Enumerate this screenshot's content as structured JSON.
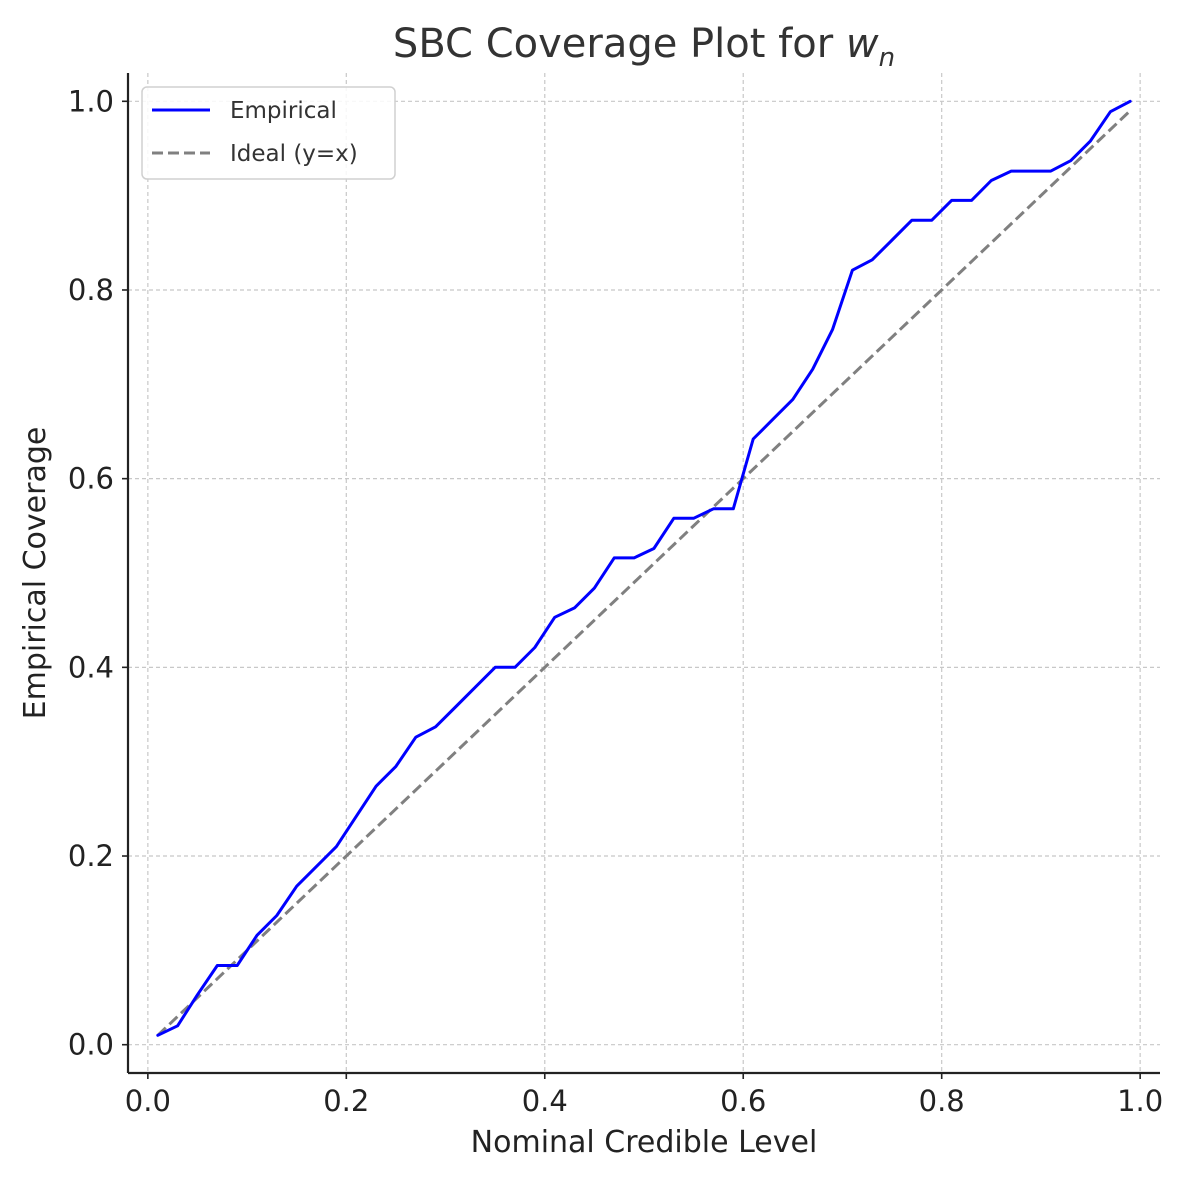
{
  "chart_data": {
    "type": "line",
    "title": {
      "text": "SBC Coverage Plot for ",
      "math_main": "w",
      "math_sub": "n"
    },
    "xlabel": "Nominal Credible Level",
    "ylabel": "Empirical Coverage",
    "xlim": [
      -0.02,
      1.02
    ],
    "ylim": [
      -0.03,
      1.03
    ],
    "xticks": [
      0.0,
      0.2,
      0.4,
      0.6,
      0.8,
      1.0
    ],
    "xtick_labels": [
      "0.0",
      "0.2",
      "0.4",
      "0.6",
      "0.8",
      "1.0"
    ],
    "yticks": [
      0.0,
      0.2,
      0.4,
      0.6,
      0.8,
      1.0
    ],
    "ytick_labels": [
      "0.0",
      "0.2",
      "0.4",
      "0.6",
      "0.8",
      "1.0"
    ],
    "grid": true,
    "legend_position": "upper-left",
    "series": [
      {
        "name": "Empirical",
        "color": "#0000ff",
        "style": "solid",
        "x": [
          0.01,
          0.03,
          0.05,
          0.07,
          0.09,
          0.11,
          0.13,
          0.15,
          0.17,
          0.19,
          0.21,
          0.23,
          0.25,
          0.27,
          0.29,
          0.31,
          0.33,
          0.35,
          0.37,
          0.39,
          0.41,
          0.43,
          0.45,
          0.47,
          0.49,
          0.51,
          0.53,
          0.55,
          0.57,
          0.59,
          0.61,
          0.63,
          0.65,
          0.67,
          0.69,
          0.71,
          0.73,
          0.75,
          0.77,
          0.79,
          0.81,
          0.83,
          0.85,
          0.87,
          0.89,
          0.91,
          0.93,
          0.95,
          0.97,
          0.99
        ],
        "y": [
          0.01,
          0.02,
          0.053,
          0.084,
          0.084,
          0.116,
          0.137,
          0.168,
          0.189,
          0.21,
          0.242,
          0.274,
          0.295,
          0.326,
          0.337,
          0.358,
          0.379,
          0.4,
          0.4,
          0.421,
          0.453,
          0.463,
          0.484,
          0.516,
          0.516,
          0.526,
          0.558,
          0.558,
          0.568,
          0.568,
          0.642,
          0.663,
          0.684,
          0.716,
          0.758,
          0.821,
          0.832,
          0.853,
          0.874,
          0.874,
          0.895,
          0.895,
          0.916,
          0.926,
          0.926,
          0.926,
          0.937,
          0.958,
          0.989,
          1.0
        ]
      },
      {
        "name": "Ideal (y=x)",
        "color": "#808080",
        "style": "dashed",
        "x": [
          0.01,
          0.99
        ],
        "y": [
          0.01,
          0.99
        ]
      }
    ]
  }
}
